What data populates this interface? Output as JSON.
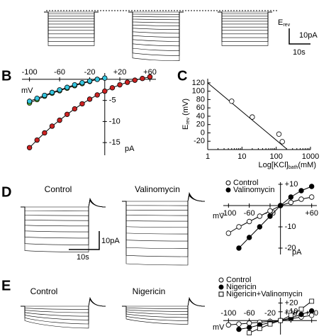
{
  "figure": {
    "panel_labels": [
      "B",
      "C",
      "D",
      "E"
    ],
    "top": {
      "erev": {
        "main": "E",
        "sub": "rev"
      },
      "scale_y": "10pA",
      "scale_x": "10s"
    },
    "D": {
      "traces": [
        "Control",
        "Valinomycin"
      ],
      "scale_y": "10pA",
      "scale_x": "10s"
    },
    "E": {
      "traces": [
        "Control",
        "Nigericin"
      ]
    }
  },
  "chart_data": [
    {
      "type": "iv",
      "xlabel": "mV",
      "ylabel": "pA",
      "xlim": [
        -110,
        68
      ],
      "ylim": [
        -18,
        1.5
      ],
      "xticks": [
        -100,
        -60,
        -20,
        {
          "value": 20,
          "label": "+20"
        },
        {
          "value": 60,
          "label": "+60"
        }
      ],
      "yticks": [
        -5,
        -10,
        -15
      ],
      "series": [
        {
          "color": "#66cc33",
          "marker": "circle",
          "x": [
            -100,
            -90,
            -80,
            -70,
            -60,
            -50,
            -40,
            -30,
            -20,
            -10
          ],
          "values": [
            -5.6,
            -4.8,
            -4.0,
            -3.3,
            -2.7,
            -2.1,
            -1.5,
            -1.0,
            -0.5,
            0
          ]
        },
        {
          "color": "#33c6e0",
          "marker": "circle",
          "x": [
            -100,
            -90,
            -80,
            -70,
            -60,
            -50,
            -40,
            -30,
            -20,
            -10,
            0
          ],
          "values": [
            -5.2,
            -4.5,
            -3.8,
            -3.1,
            -2.5,
            -1.9,
            -1.3,
            -0.8,
            -0.4,
            0,
            0.3
          ]
        },
        {
          "color": "#cc2222",
          "marker": "circle",
          "x": [
            -100,
            -90,
            -80,
            -70,
            -60,
            -50,
            -40,
            -30,
            -20,
            -10,
            0,
            10,
            20,
            30,
            40,
            50,
            60
          ],
          "values": [
            -16.2,
            -14.4,
            -12.7,
            -11.1,
            -9.7,
            -8.3,
            -7.0,
            -5.8,
            -4.7,
            -3.7,
            -2.8,
            -2.0,
            -1.3,
            -0.7,
            -0.2,
            0.2,
            0.6
          ]
        }
      ]
    },
    {
      "type": "scatter",
      "xscale": "log",
      "xlabel": {
        "main": "Log[KCl]",
        "sub": "bath",
        "rest": "(mM)"
      },
      "ylabel": {
        "main": "E",
        "sub": "rev",
        "rest": " (mV)"
      },
      "xlim": [
        1,
        1000
      ],
      "ylim": [
        -40,
        130
      ],
      "xticks": [
        1,
        10,
        100,
        1000
      ],
      "yticks": [
        -20,
        0,
        20,
        40,
        60,
        80,
        100,
        120
      ],
      "series": [
        {
          "color": "#ffffff",
          "marker": "circle",
          "x": [
            5,
            20,
            120,
            150
          ],
          "values": [
            76,
            38,
            -3,
            -21
          ]
        }
      ],
      "fit": {
        "color": "#000000",
        "x": [
          1,
          200
        ],
        "values": [
          120,
          -38
        ]
      }
    },
    {
      "type": "iv",
      "xlabel": "mV",
      "ylabel": "pA",
      "xlim": [
        -110,
        70
      ],
      "ylim": [
        -23,
        11
      ],
      "xticks": [
        -100,
        -60,
        -20,
        {
          "value": 60,
          "label": "+60"
        }
      ],
      "yticks": [
        {
          "value": 10,
          "label": "+10"
        },
        -10,
        -20
      ],
      "legend": "upper left",
      "series": [
        {
          "name": "Control",
          "color": "#ffffff",
          "marker": "circle",
          "x": [
            -100,
            -80,
            -60,
            -40,
            -20,
            0,
            20,
            40,
            60
          ],
          "values": [
            -13,
            -10,
            -7.5,
            -5,
            -2.5,
            0,
            1.5,
            3,
            4
          ]
        },
        {
          "name": "Valinomycin",
          "color": "#000000",
          "marker": "circle",
          "x": [
            -80,
            -60,
            -40,
            -20,
            0,
            20,
            40,
            60
          ],
          "values": [
            -20,
            -15,
            -10,
            -5,
            0,
            4,
            7,
            9
          ]
        }
      ]
    },
    {
      "type": "iv",
      "xlabel": "mV",
      "xlim": [
        -110,
        70
      ],
      "ylim": [
        -16,
        26
      ],
      "xticks": [
        -100,
        -60,
        -20,
        {
          "value": 20,
          "label": "+20"
        },
        {
          "value": 60,
          "label": "+60"
        }
      ],
      "yticks": [
        {
          "value": 20,
          "label": "+20"
        },
        {
          "value": 10,
          "label": "+10"
        }
      ],
      "legend": "upper left",
      "series": [
        {
          "name": "Control",
          "color": "#ffffff",
          "marker": "circle",
          "x": [
            -100,
            -80,
            -60,
            -40,
            -20,
            0,
            20,
            40,
            60
          ],
          "values": [
            -5,
            -4,
            -3,
            -2,
            -1,
            0,
            2,
            4,
            6
          ]
        },
        {
          "name": "Nigericin",
          "color": "#000000",
          "marker": "circle",
          "x": [
            -80,
            -60,
            -40,
            -20,
            0,
            20,
            40,
            60
          ],
          "values": [
            -10,
            -8,
            -5,
            -2.5,
            0,
            3,
            7,
            11
          ]
        },
        {
          "name": "Nigericin+Valinomycin",
          "color": "#ffffff",
          "marker": "square",
          "x": [
            -60,
            -40,
            -20,
            0,
            20,
            40,
            60
          ],
          "values": [
            -14,
            -9,
            -4,
            0,
            6,
            13,
            22
          ]
        }
      ]
    }
  ]
}
